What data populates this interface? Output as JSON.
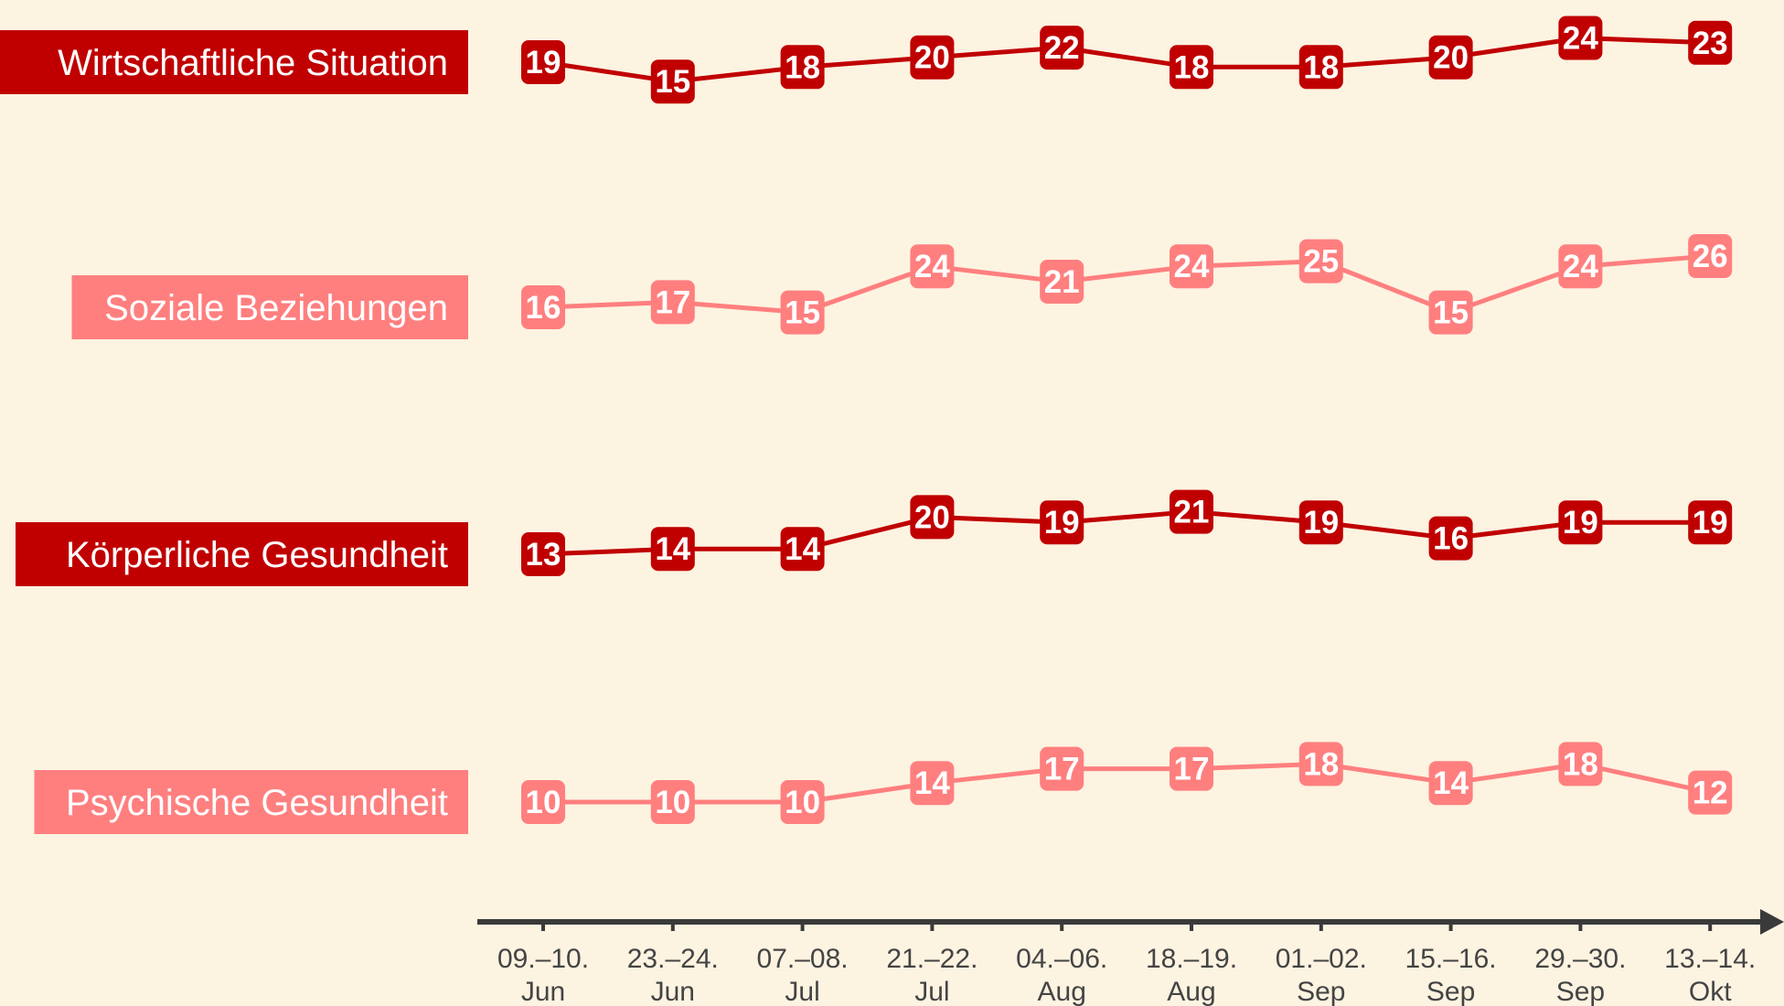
{
  "chart_data": {
    "type": "line",
    "title": "",
    "xlabel": "",
    "ylabel": "",
    "categories": [
      [
        "09.–10.",
        "Jun"
      ],
      [
        "23.–24.",
        "Jun"
      ],
      [
        "07.–08.",
        "Jul"
      ],
      [
        "21.–22.",
        "Jul"
      ],
      [
        "04.–06.",
        "Aug"
      ],
      [
        "18.–19.",
        "Aug"
      ],
      [
        "01.–02.",
        "Sep"
      ],
      [
        "15.–16.",
        "Sep"
      ],
      [
        "29.–30.",
        "Sep"
      ],
      [
        "13.–14.",
        "Okt"
      ]
    ],
    "series": [
      {
        "name": "Wirtschaftliche Situation",
        "color": "#c00000",
        "values": [
          19,
          15,
          18,
          20,
          22,
          18,
          18,
          20,
          24,
          23
        ]
      },
      {
        "name": "Soziale Beziehungen",
        "color": "#ff7f7f",
        "values": [
          16,
          17,
          15,
          24,
          21,
          24,
          25,
          15,
          24,
          26
        ]
      },
      {
        "name": "Körperliche Gesundheit",
        "color": "#c00000",
        "values": [
          13,
          14,
          14,
          20,
          19,
          21,
          19,
          16,
          19,
          19
        ]
      },
      {
        "name": "Psychische Gesundheit",
        "color": "#ff7f7f",
        "values": [
          10,
          10,
          10,
          14,
          17,
          17,
          18,
          14,
          18,
          12
        ]
      }
    ],
    "axis_color": "#3a3a3a",
    "background": "#fdf3e1",
    "grid": false,
    "legend": "left-labels"
  }
}
